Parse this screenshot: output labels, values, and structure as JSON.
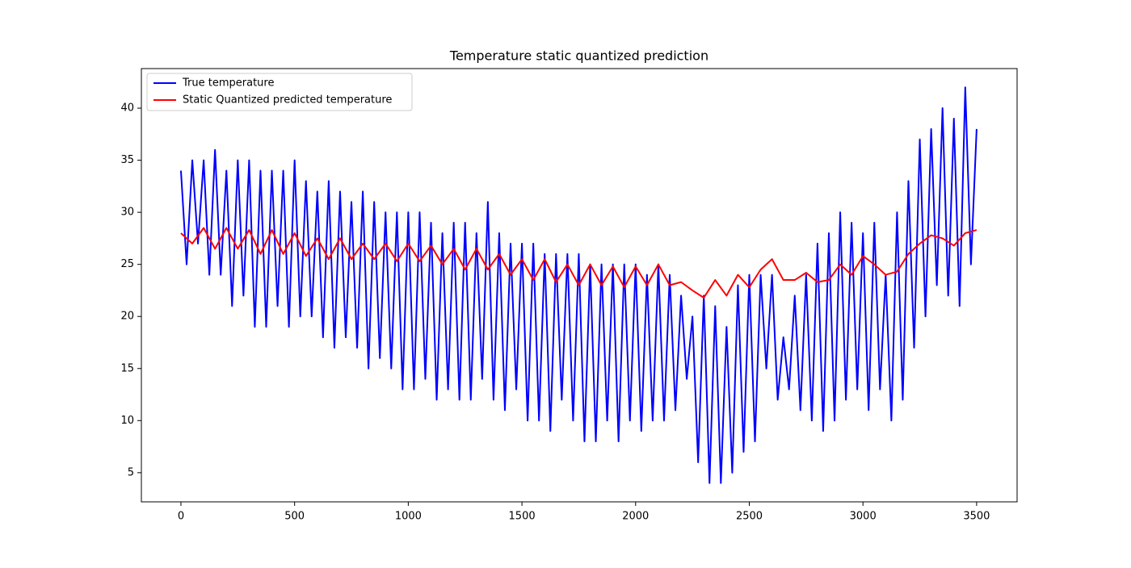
{
  "chart_data": {
    "type": "line",
    "title": "Temperature static quantized prediction",
    "xlim": [
      -174,
      3678
    ],
    "ylim": [
      2.2,
      43.8
    ],
    "xticks": [
      0,
      500,
      1000,
      1500,
      2000,
      2500,
      3000,
      3500
    ],
    "yticks": [
      5,
      10,
      15,
      20,
      25,
      30,
      35,
      40
    ],
    "grid": false,
    "legend": "upper left",
    "series": [
      {
        "name": "True temperature",
        "color": "#0000ff",
        "x": [
          0,
          25,
          50,
          75,
          100,
          125,
          150,
          175,
          200,
          225,
          250,
          275,
          300,
          325,
          350,
          375,
          400,
          425,
          450,
          475,
          500,
          525,
          550,
          575,
          600,
          625,
          650,
          675,
          700,
          725,
          750,
          775,
          800,
          825,
          850,
          875,
          900,
          925,
          950,
          975,
          1000,
          1025,
          1050,
          1075,
          1100,
          1125,
          1150,
          1175,
          1200,
          1225,
          1250,
          1275,
          1300,
          1325,
          1350,
          1375,
          1400,
          1425,
          1450,
          1475,
          1500,
          1525,
          1550,
          1575,
          1600,
          1625,
          1650,
          1675,
          1700,
          1725,
          1750,
          1775,
          1800,
          1825,
          1850,
          1875,
          1900,
          1925,
          1950,
          1975,
          2000,
          2025,
          2050,
          2075,
          2100,
          2125,
          2150,
          2175,
          2200,
          2225,
          2250,
          2275,
          2300,
          2325,
          2350,
          2375,
          2400,
          2425,
          2450,
          2475,
          2500,
          2525,
          2550,
          2575,
          2600,
          2625,
          2650,
          2675,
          2700,
          2725,
          2750,
          2775,
          2800,
          2825,
          2850,
          2875,
          2900,
          2925,
          2950,
          2975,
          3000,
          3025,
          3050,
          3075,
          3100,
          3125,
          3150,
          3175,
          3200,
          3225,
          3250,
          3275,
          3300,
          3325,
          3350,
          3375,
          3400,
          3425,
          3450,
          3475,
          3500
        ],
        "values": [
          34,
          25,
          35,
          27,
          35,
          24,
          36,
          24,
          34,
          21,
          35,
          22,
          35,
          19,
          34,
          19,
          34,
          21,
          34,
          19,
          35,
          20,
          33,
          20,
          32,
          18,
          33,
          17,
          32,
          18,
          31,
          17,
          32,
          15,
          31,
          16,
          30,
          15,
          30,
          13,
          30,
          13,
          30,
          14,
          29,
          12,
          28,
          13,
          29,
          12,
          29,
          12,
          28,
          14,
          31,
          12,
          28,
          11,
          27,
          13,
          27,
          10,
          27,
          10,
          26,
          9,
          26,
          12,
          26,
          10,
          26,
          8,
          25,
          8,
          25,
          10,
          25,
          8,
          25,
          10,
          25,
          9,
          24,
          10,
          25,
          10,
          24,
          11,
          22,
          14,
          20,
          6,
          22,
          4,
          21,
          4,
          19,
          5,
          23,
          7,
          24,
          8,
          24,
          15,
          24,
          12,
          18,
          13,
          22,
          11,
          24,
          10,
          27,
          9,
          28,
          10,
          30,
          12,
          29,
          13,
          28,
          11,
          29,
          13,
          24,
          10,
          30,
          12,
          33,
          17,
          37,
          20,
          38,
          23,
          40,
          22,
          39,
          21,
          42,
          25,
          38
        ]
      },
      {
        "name": "Static Quantized predicted temperature",
        "color": "#ff0000",
        "x": [
          0,
          50,
          100,
          150,
          200,
          250,
          300,
          350,
          400,
          450,
          500,
          550,
          600,
          650,
          700,
          750,
          800,
          850,
          900,
          950,
          1000,
          1050,
          1100,
          1150,
          1200,
          1250,
          1300,
          1350,
          1400,
          1450,
          1500,
          1550,
          1600,
          1650,
          1700,
          1750,
          1800,
          1850,
          1900,
          1950,
          2000,
          2050,
          2100,
          2150,
          2200,
          2250,
          2300,
          2350,
          2400,
          2450,
          2500,
          2550,
          2600,
          2650,
          2700,
          2750,
          2800,
          2850,
          2900,
          2950,
          3000,
          3050,
          3100,
          3150,
          3200,
          3250,
          3300,
          3350,
          3400,
          3450,
          3500
        ],
        "values": [
          28,
          27,
          28.5,
          26.5,
          28.5,
          26.5,
          28.3,
          26,
          28.3,
          26,
          28,
          25.8,
          27.5,
          25.5,
          27.5,
          25.5,
          27,
          25.5,
          27,
          25.3,
          27,
          25.3,
          26.8,
          25,
          26.5,
          24.5,
          26.5,
          24.5,
          26,
          24,
          25.5,
          23.5,
          25.5,
          23.3,
          25,
          23,
          25,
          23,
          24.8,
          22.8,
          24.8,
          23,
          25,
          23,
          23.3,
          22.5,
          21.8,
          23.5,
          22,
          24,
          22.8,
          24.5,
          25.5,
          23.5,
          23.5,
          24.2,
          23.3,
          23.5,
          25,
          24,
          25.8,
          25,
          24,
          24.3,
          26,
          27,
          27.8,
          27.5,
          26.8,
          28,
          28.3
        ]
      }
    ]
  }
}
